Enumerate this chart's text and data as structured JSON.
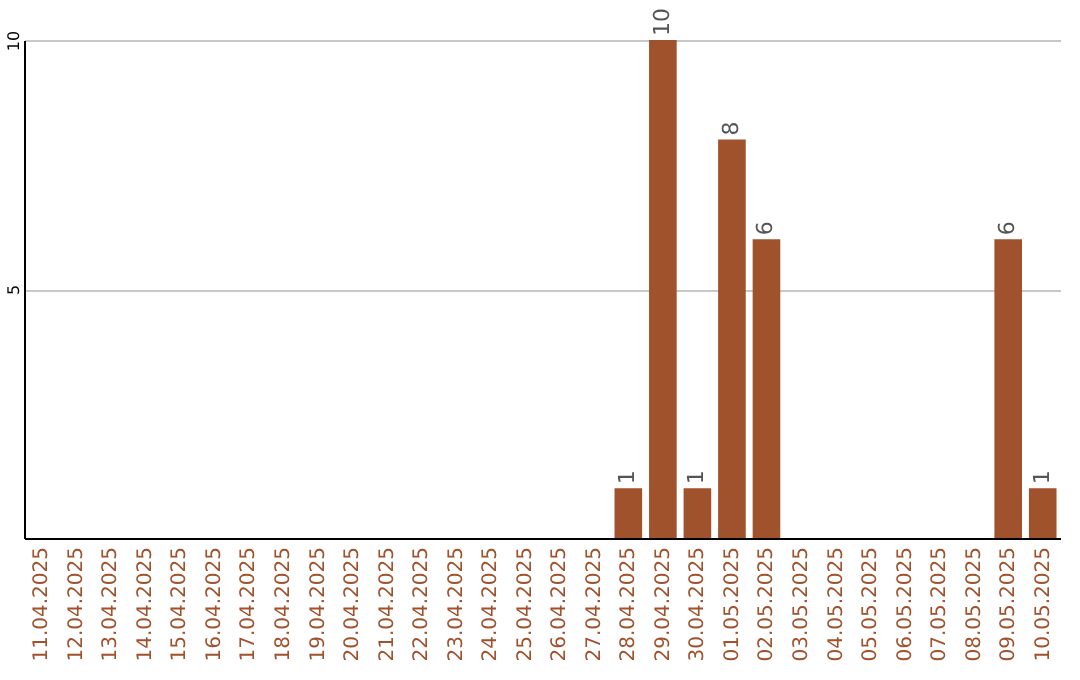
{
  "chart_data": {
    "type": "bar",
    "categories": [
      "11.04.2025",
      "12.04.2025",
      "13.04.2025",
      "14.04.2025",
      "15.04.2025",
      "16.04.2025",
      "17.04.2025",
      "18.04.2025",
      "19.04.2025",
      "20.04.2025",
      "21.04.2025",
      "22.04.2025",
      "23.04.2025",
      "24.04.2025",
      "25.04.2025",
      "26.04.2025",
      "27.04.2025",
      "28.04.2025",
      "29.04.2025",
      "30.04.2025",
      "01.05.2025",
      "02.05.2025",
      "03.05.2025",
      "04.05.2025",
      "05.05.2025",
      "06.05.2025",
      "07.05.2025",
      "08.05.2025",
      "09.05.2025",
      "10.05.2025"
    ],
    "values": [
      0,
      0,
      0,
      0,
      0,
      0,
      0,
      0,
      0,
      0,
      0,
      0,
      0,
      0,
      0,
      0,
      0,
      1,
      10,
      1,
      8,
      6,
      0,
      0,
      0,
      0,
      0,
      0,
      6,
      1
    ],
    "value_labels": [
      null,
      null,
      null,
      null,
      null,
      null,
      null,
      null,
      null,
      null,
      null,
      null,
      null,
      null,
      null,
      null,
      null,
      "1",
      "10",
      "1",
      "8",
      "6",
      null,
      null,
      null,
      null,
      null,
      null,
      "6",
      "1"
    ],
    "color": "#a0522d",
    "ylim": [
      0,
      10
    ],
    "yticks": [
      {
        "value": 0,
        "label": null
      },
      5,
      10
    ],
    "grid": "y"
  }
}
